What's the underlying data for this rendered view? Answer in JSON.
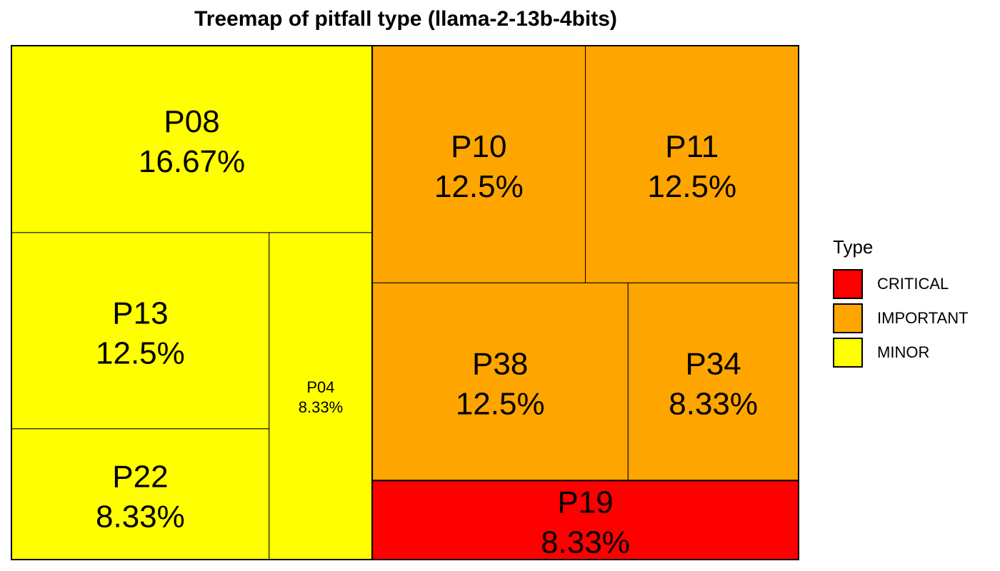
{
  "chart_data": {
    "type": "treemap",
    "title": "Treemap of pitfall type (llama-2-13b-4bits)",
    "legend": {
      "title": "Type",
      "placement": "right",
      "items": [
        {
          "label": "CRITICAL",
          "color": "#ff0000"
        },
        {
          "label": "IMPORTANT",
          "color": "#ffa500"
        },
        {
          "label": "MINOR",
          "color": "#ffff00"
        }
      ]
    },
    "groups": [
      {
        "type": "MINOR",
        "tiles": [
          {
            "name": "P08",
            "label": "16.67%",
            "value": 16.67
          },
          {
            "name": "P13",
            "label": "12.5%",
            "value": 12.5
          },
          {
            "name": "P22",
            "label": "8.33%",
            "value": 8.33
          },
          {
            "name": "P04",
            "label": "8.33%",
            "value": 8.33
          }
        ]
      },
      {
        "type": "IMPORTANT",
        "tiles": [
          {
            "name": "P10",
            "label": "12.5%",
            "value": 12.5
          },
          {
            "name": "P11",
            "label": "12.5%",
            "value": 12.5
          },
          {
            "name": "P34",
            "label": "8.33%",
            "value": 8.33
          },
          {
            "name": "P38",
            "label": "12.5%",
            "value": 12.5
          }
        ]
      },
      {
        "type": "CRITICAL",
        "tiles": [
          {
            "name": "P19",
            "label": "8.33%",
            "value": 8.33
          }
        ]
      }
    ]
  }
}
